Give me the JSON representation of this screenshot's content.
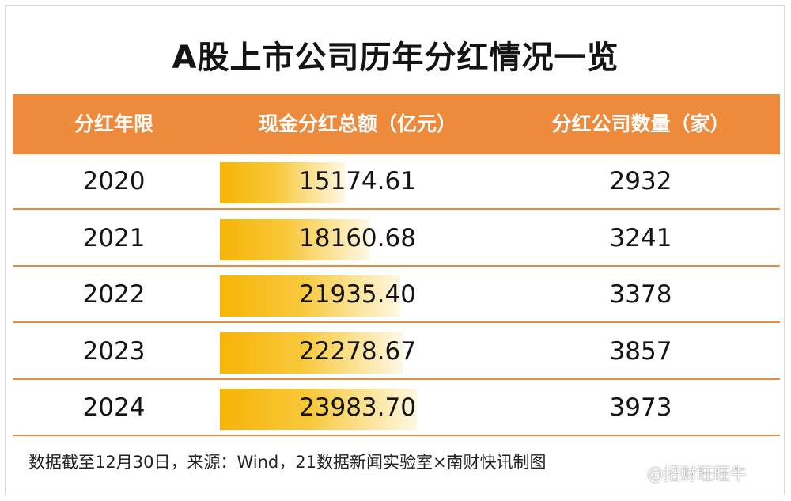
{
  "title": "A股上市公司历年分红情况一览",
  "headers": [
    "分红年限",
    "现金分红总额（亿元）",
    "分红公司数量（家）"
  ],
  "colors": {
    "header_bg": "#ed8a3c",
    "bar_start": "#f6b406",
    "bar_end": "#fff7e2",
    "row_rule": "#ed8a3c"
  },
  "chart_data": {
    "type": "table",
    "columns": [
      "分红年限",
      "现金分红总额（亿元）",
      "分红公司数量（家）"
    ],
    "rows": [
      {
        "year": "2020",
        "amount": "15174.61",
        "count": "2932"
      },
      {
        "year": "2021",
        "amount": "18160.68",
        "count": "3241"
      },
      {
        "year": "2022",
        "amount": "21935.40",
        "count": "3378"
      },
      {
        "year": "2023",
        "amount": "22278.67",
        "count": "3857"
      },
      {
        "year": "2024",
        "amount": "23983.70",
        "count": "3973"
      }
    ],
    "bar_values": [
      15174.61,
      18160.68,
      21935.4,
      22278.67,
      23983.7
    ]
  },
  "footer": "数据截至12月30日，来源：Wind，21数据新闻实验室×南财快讯制图",
  "watermark": "@招财旺旺牛"
}
